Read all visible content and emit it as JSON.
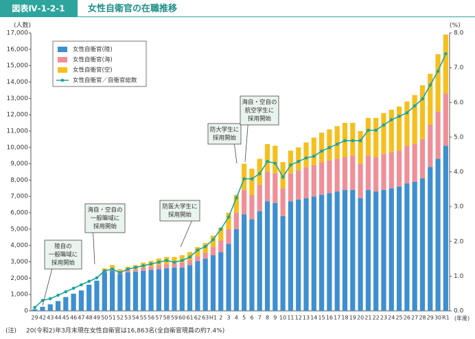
{
  "header": {
    "label": "図表Ⅳ-1-2-1",
    "title": "女性自衛官の在職推移"
  },
  "chart_data": {
    "type": "bar",
    "stacked": true,
    "y_axis_label": "(人数)",
    "y2_axis_label": "(%)",
    "x_axis_label": "(年度)",
    "categories": [
      "29",
      "42",
      "43",
      "44",
      "45",
      "46",
      "47",
      "48",
      "49",
      "50",
      "51",
      "52",
      "53",
      "54",
      "55",
      "56",
      "57",
      "58",
      "59",
      "60",
      "61",
      "62",
      "63",
      "H1",
      "2",
      "3",
      "4",
      "5",
      "6",
      "7",
      "8",
      "9",
      "10",
      "11",
      "12",
      "13",
      "14",
      "15",
      "16",
      "17",
      "18",
      "19",
      "20",
      "21",
      "22",
      "23",
      "24",
      "25",
      "26",
      "27",
      "28",
      "29",
      "30",
      "R1"
    ],
    "series": [
      {
        "name": "女性自衛官(陸)",
        "color": "#3d8fd0",
        "values": [
          100,
          250,
          400,
          600,
          850,
          1050,
          1250,
          1600,
          1850,
          2350,
          2450,
          2250,
          2350,
          2400,
          2450,
          2500,
          2550,
          2600,
          2650,
          2650,
          2800,
          3050,
          3200,
          3400,
          3600,
          4100,
          5000,
          5900,
          5600,
          6100,
          6700,
          6600,
          5800,
          6700,
          6800,
          6900,
          7000,
          7100,
          7200,
          7300,
          7400,
          7400,
          6900,
          7400,
          7300,
          7400,
          7500,
          7600,
          7800,
          7900,
          8100,
          8800,
          9300,
          10100
        ]
      },
      {
        "name": "女性自衛官(海)",
        "color": "#ef8f98",
        "values": [
          0,
          0,
          0,
          0,
          0,
          0,
          0,
          0,
          0,
          100,
          150,
          150,
          150,
          150,
          200,
          200,
          250,
          250,
          250,
          300,
          300,
          300,
          350,
          500,
          700,
          900,
          1000,
          1500,
          1500,
          1600,
          1800,
          1800,
          1700,
          1700,
          1800,
          1900,
          1900,
          2000,
          2000,
          2000,
          2000,
          2100,
          2100,
          2100,
          2100,
          2200,
          2200,
          2200,
          2300,
          2300,
          2400,
          2600,
          2900,
          3200
        ]
      },
      {
        "name": "女性自衛官(空)",
        "color": "#f5bf1e",
        "values": [
          0,
          0,
          0,
          0,
          0,
          0,
          0,
          0,
          0,
          150,
          200,
          150,
          200,
          250,
          300,
          350,
          400,
          450,
          400,
          450,
          500,
          550,
          600,
          700,
          800,
          1000,
          1100,
          1600,
          1600,
          1600,
          1700,
          1700,
          1600,
          1400,
          1400,
          1500,
          1700,
          1800,
          1900,
          2000,
          2100,
          2000,
          2000,
          2300,
          2400,
          2500,
          2600,
          2700,
          2700,
          3000,
          3300,
          3100,
          3500,
          3600
        ]
      },
      {
        "name": "女性自衛官／自衛官総数",
        "type": "line",
        "axis": "y2",
        "color": "#1aa59a",
        "values": [
          0.1,
          0.3,
          0.35,
          0.45,
          0.55,
          0.65,
          0.75,
          0.85,
          0.95,
          1.15,
          1.2,
          1.1,
          1.2,
          1.25,
          1.3,
          1.35,
          1.4,
          1.45,
          1.4,
          1.45,
          1.55,
          1.75,
          1.85,
          2.05,
          2.35,
          2.7,
          3.25,
          3.8,
          3.8,
          3.95,
          4.3,
          4.25,
          3.85,
          4.2,
          4.3,
          4.4,
          4.45,
          4.6,
          4.7,
          4.8,
          4.9,
          4.9,
          4.9,
          5.2,
          5.2,
          5.35,
          5.5,
          5.6,
          5.7,
          5.9,
          6.1,
          6.5,
          6.9,
          7.4
        ]
      }
    ],
    "ylim": [
      0,
      17000
    ],
    "yticks": [
      0,
      {
        "value": 1000,
        "label": "1,000"
      },
      {
        "value": 2000,
        "label": "2,000"
      },
      {
        "value": 3000,
        "label": "3,000"
      },
      {
        "value": 4000,
        "label": "4,000"
      },
      {
        "value": 5000,
        "label": "5,000"
      },
      {
        "value": 6000,
        "label": "6,000"
      },
      {
        "value": 7000,
        "label": "7,000"
      },
      {
        "value": 8000,
        "label": "8,000"
      },
      {
        "value": 9000,
        "label": "9,000"
      },
      {
        "value": 10000,
        "label": "10,000"
      },
      {
        "value": 11000,
        "label": "11,000"
      },
      {
        "value": 12000,
        "label": "12,000"
      },
      {
        "value": 13000,
        "label": "13,000"
      },
      {
        "value": 14000,
        "label": "14,000"
      },
      {
        "value": 15000,
        "label": "15,000"
      },
      {
        "value": 16000,
        "label": "16,000"
      },
      {
        "value": 17000,
        "label": "17,000"
      }
    ],
    "y2lim": [
      0,
      8
    ],
    "y2ticks": [
      {
        "value": 0,
        "label": "0.0"
      },
      {
        "value": 1,
        "label": "1.0"
      },
      {
        "value": 2,
        "label": "2.0"
      },
      {
        "value": 3,
        "label": "3.0"
      },
      {
        "value": 4,
        "label": "4.0"
      },
      {
        "value": 5,
        "label": "5.0"
      },
      {
        "value": 6,
        "label": "6.0"
      },
      {
        "value": 7,
        "label": "7.0"
      },
      {
        "value": 8,
        "label": "8.0"
      }
    ],
    "grid": false,
    "legend": "upper left",
    "annotations": [
      {
        "lines": [
          "陸自の",
          "一般職域に",
          "採用開始"
        ]
      },
      {
        "lines": [
          "海自・空自の",
          "一般職域に",
          "採用開始"
        ]
      },
      {
        "lines": [
          "防医大学生に",
          "採用開始"
        ]
      },
      {
        "lines": [
          "防大学生に",
          "採用開始"
        ]
      },
      {
        "lines": [
          "海自・空自の",
          "航空学生に",
          "採用開始"
        ]
      }
    ]
  },
  "note": {
    "label": "(注)",
    "text": "20(令和2)年3月末現在女性自衛官は16,863名(全自衛官現員の約7.4%)"
  }
}
